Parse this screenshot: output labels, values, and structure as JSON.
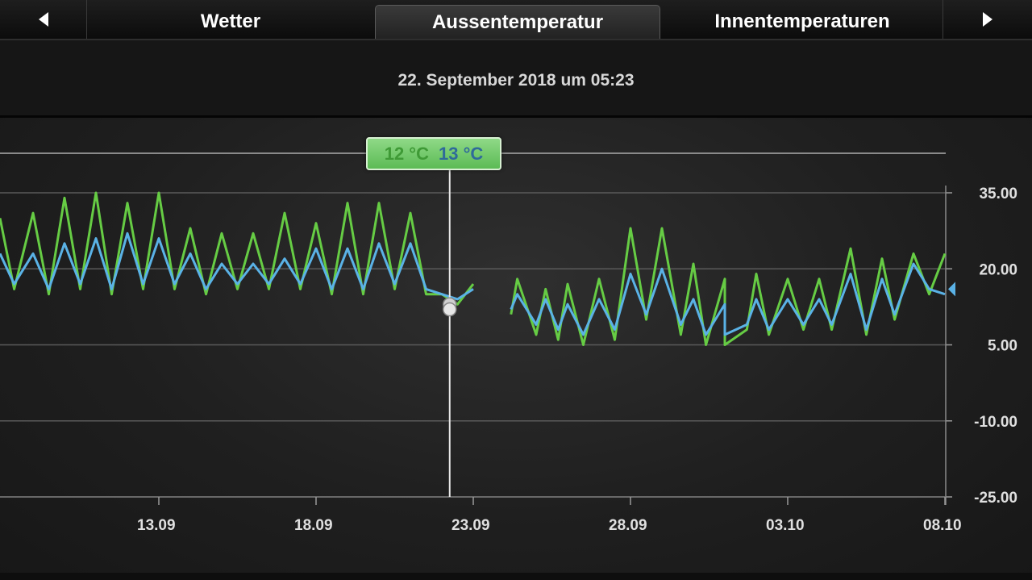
{
  "tabs": {
    "prev_icon": "chevron-left-icon",
    "next_icon": "chevron-right-icon",
    "items": [
      {
        "label": "Wetter",
        "active": false
      },
      {
        "label": "Aussentemperatur",
        "active": true
      },
      {
        "label": "Innentemperaturen",
        "active": false
      }
    ]
  },
  "date_label": "22. September 2018 um 05:23",
  "tooltip": {
    "green_value": "12 °C",
    "blue_value": "13 °C"
  },
  "colors": {
    "green": "#66cc44",
    "blue": "#5ab2e6",
    "background": "#141414"
  },
  "chart_data": {
    "type": "line",
    "x_tick_labels": [
      "13.09",
      "18.09",
      "23.09",
      "28.09",
      "03.10",
      "08.10"
    ],
    "x_tick_days": [
      0,
      5,
      10,
      15,
      20,
      25
    ],
    "y_tick_labels": [
      "35.00",
      "20.00",
      "5.00",
      "-10.00",
      "-25.00"
    ],
    "ylim": [
      -25,
      35
    ],
    "x_range_days": [
      -5,
      25
    ],
    "grid": true,
    "cursor": {
      "day": 9.25,
      "green": 12,
      "blue": 13
    },
    "gap": [
      10.7,
      11.2
    ],
    "series": [
      {
        "color": "green",
        "peaks": [
          [
            -5.1,
            30
          ],
          [
            -4,
            31
          ],
          [
            -3,
            34
          ],
          [
            -2,
            35
          ],
          [
            -1,
            33
          ],
          [
            0,
            35
          ],
          [
            1,
            28
          ],
          [
            2,
            27
          ],
          [
            3,
            27
          ],
          [
            4,
            31
          ],
          [
            5,
            29
          ],
          [
            6,
            33
          ],
          [
            7,
            33
          ],
          [
            8,
            31
          ],
          [
            9,
            15
          ],
          [
            10,
            17
          ],
          [
            11.4,
            18
          ],
          [
            12.3,
            16
          ],
          [
            13,
            17
          ],
          [
            14,
            18
          ],
          [
            15,
            28
          ],
          [
            16,
            28
          ],
          [
            17,
            21
          ],
          [
            18,
            18
          ],
          [
            19,
            19
          ],
          [
            20,
            18
          ],
          [
            21,
            18
          ],
          [
            22,
            24
          ],
          [
            23,
            22
          ],
          [
            24,
            23
          ],
          [
            25,
            23
          ]
        ],
        "troughs": [
          [
            -4.6,
            16
          ],
          [
            -3.5,
            15
          ],
          [
            -2.5,
            16
          ],
          [
            -1.5,
            15
          ],
          [
            -0.5,
            16
          ],
          [
            0.5,
            16
          ],
          [
            1.5,
            15
          ],
          [
            2.5,
            16
          ],
          [
            3.5,
            16
          ],
          [
            4.5,
            16
          ],
          [
            5.5,
            15
          ],
          [
            6.5,
            15
          ],
          [
            7.5,
            16
          ],
          [
            8.5,
            15
          ],
          [
            9.5,
            13
          ],
          [
            11.2,
            11
          ],
          [
            12,
            7
          ],
          [
            12.7,
            6
          ],
          [
            13.5,
            5
          ],
          [
            14.5,
            6
          ],
          [
            15.5,
            10
          ],
          [
            16.6,
            7
          ],
          [
            17.4,
            5
          ],
          [
            18,
            5
          ],
          [
            18.7,
            8
          ],
          [
            19.4,
            7
          ],
          [
            20.5,
            8
          ],
          [
            21.4,
            8
          ],
          [
            22.5,
            7
          ],
          [
            23.4,
            10
          ],
          [
            24.5,
            15
          ]
        ]
      },
      {
        "color": "blue",
        "peaks": [
          [
            -5.1,
            23
          ],
          [
            -4,
            23
          ],
          [
            -3,
            25
          ],
          [
            -2,
            26
          ],
          [
            -1,
            27
          ],
          [
            0,
            26
          ],
          [
            1,
            23
          ],
          [
            2,
            21
          ],
          [
            3,
            21
          ],
          [
            4,
            22
          ],
          [
            5,
            24
          ],
          [
            6,
            24
          ],
          [
            7,
            25
          ],
          [
            8,
            25
          ],
          [
            9,
            15
          ],
          [
            10,
            16
          ],
          [
            11.4,
            15
          ],
          [
            12.3,
            14
          ],
          [
            13,
            13
          ],
          [
            14,
            14
          ],
          [
            15,
            19
          ],
          [
            16,
            20
          ],
          [
            17,
            14
          ],
          [
            18,
            13
          ],
          [
            19,
            14
          ],
          [
            20,
            14
          ],
          [
            21,
            14
          ],
          [
            22,
            19
          ],
          [
            23,
            18
          ],
          [
            24,
            21
          ],
          [
            25,
            15
          ]
        ],
        "troughs": [
          [
            -4.6,
            17
          ],
          [
            -3.5,
            16
          ],
          [
            -2.5,
            17
          ],
          [
            -1.5,
            16
          ],
          [
            -0.5,
            17
          ],
          [
            0.5,
            17
          ],
          [
            1.5,
            16
          ],
          [
            2.5,
            17
          ],
          [
            3.5,
            17
          ],
          [
            4.5,
            17
          ],
          [
            5.5,
            16
          ],
          [
            6.5,
            16
          ],
          [
            7.5,
            17
          ],
          [
            8.5,
            16
          ],
          [
            9.5,
            14
          ],
          [
            11.2,
            12
          ],
          [
            12,
            9
          ],
          [
            12.7,
            8
          ],
          [
            13.5,
            7
          ],
          [
            14.5,
            8
          ],
          [
            15.5,
            11
          ],
          [
            16.6,
            9
          ],
          [
            17.4,
            7
          ],
          [
            18,
            7
          ],
          [
            18.7,
            9
          ],
          [
            19.4,
            8
          ],
          [
            20.5,
            9
          ],
          [
            21.4,
            9
          ],
          [
            22.5,
            8
          ],
          [
            23.4,
            11
          ],
          [
            24.5,
            16
          ]
        ]
      }
    ]
  }
}
